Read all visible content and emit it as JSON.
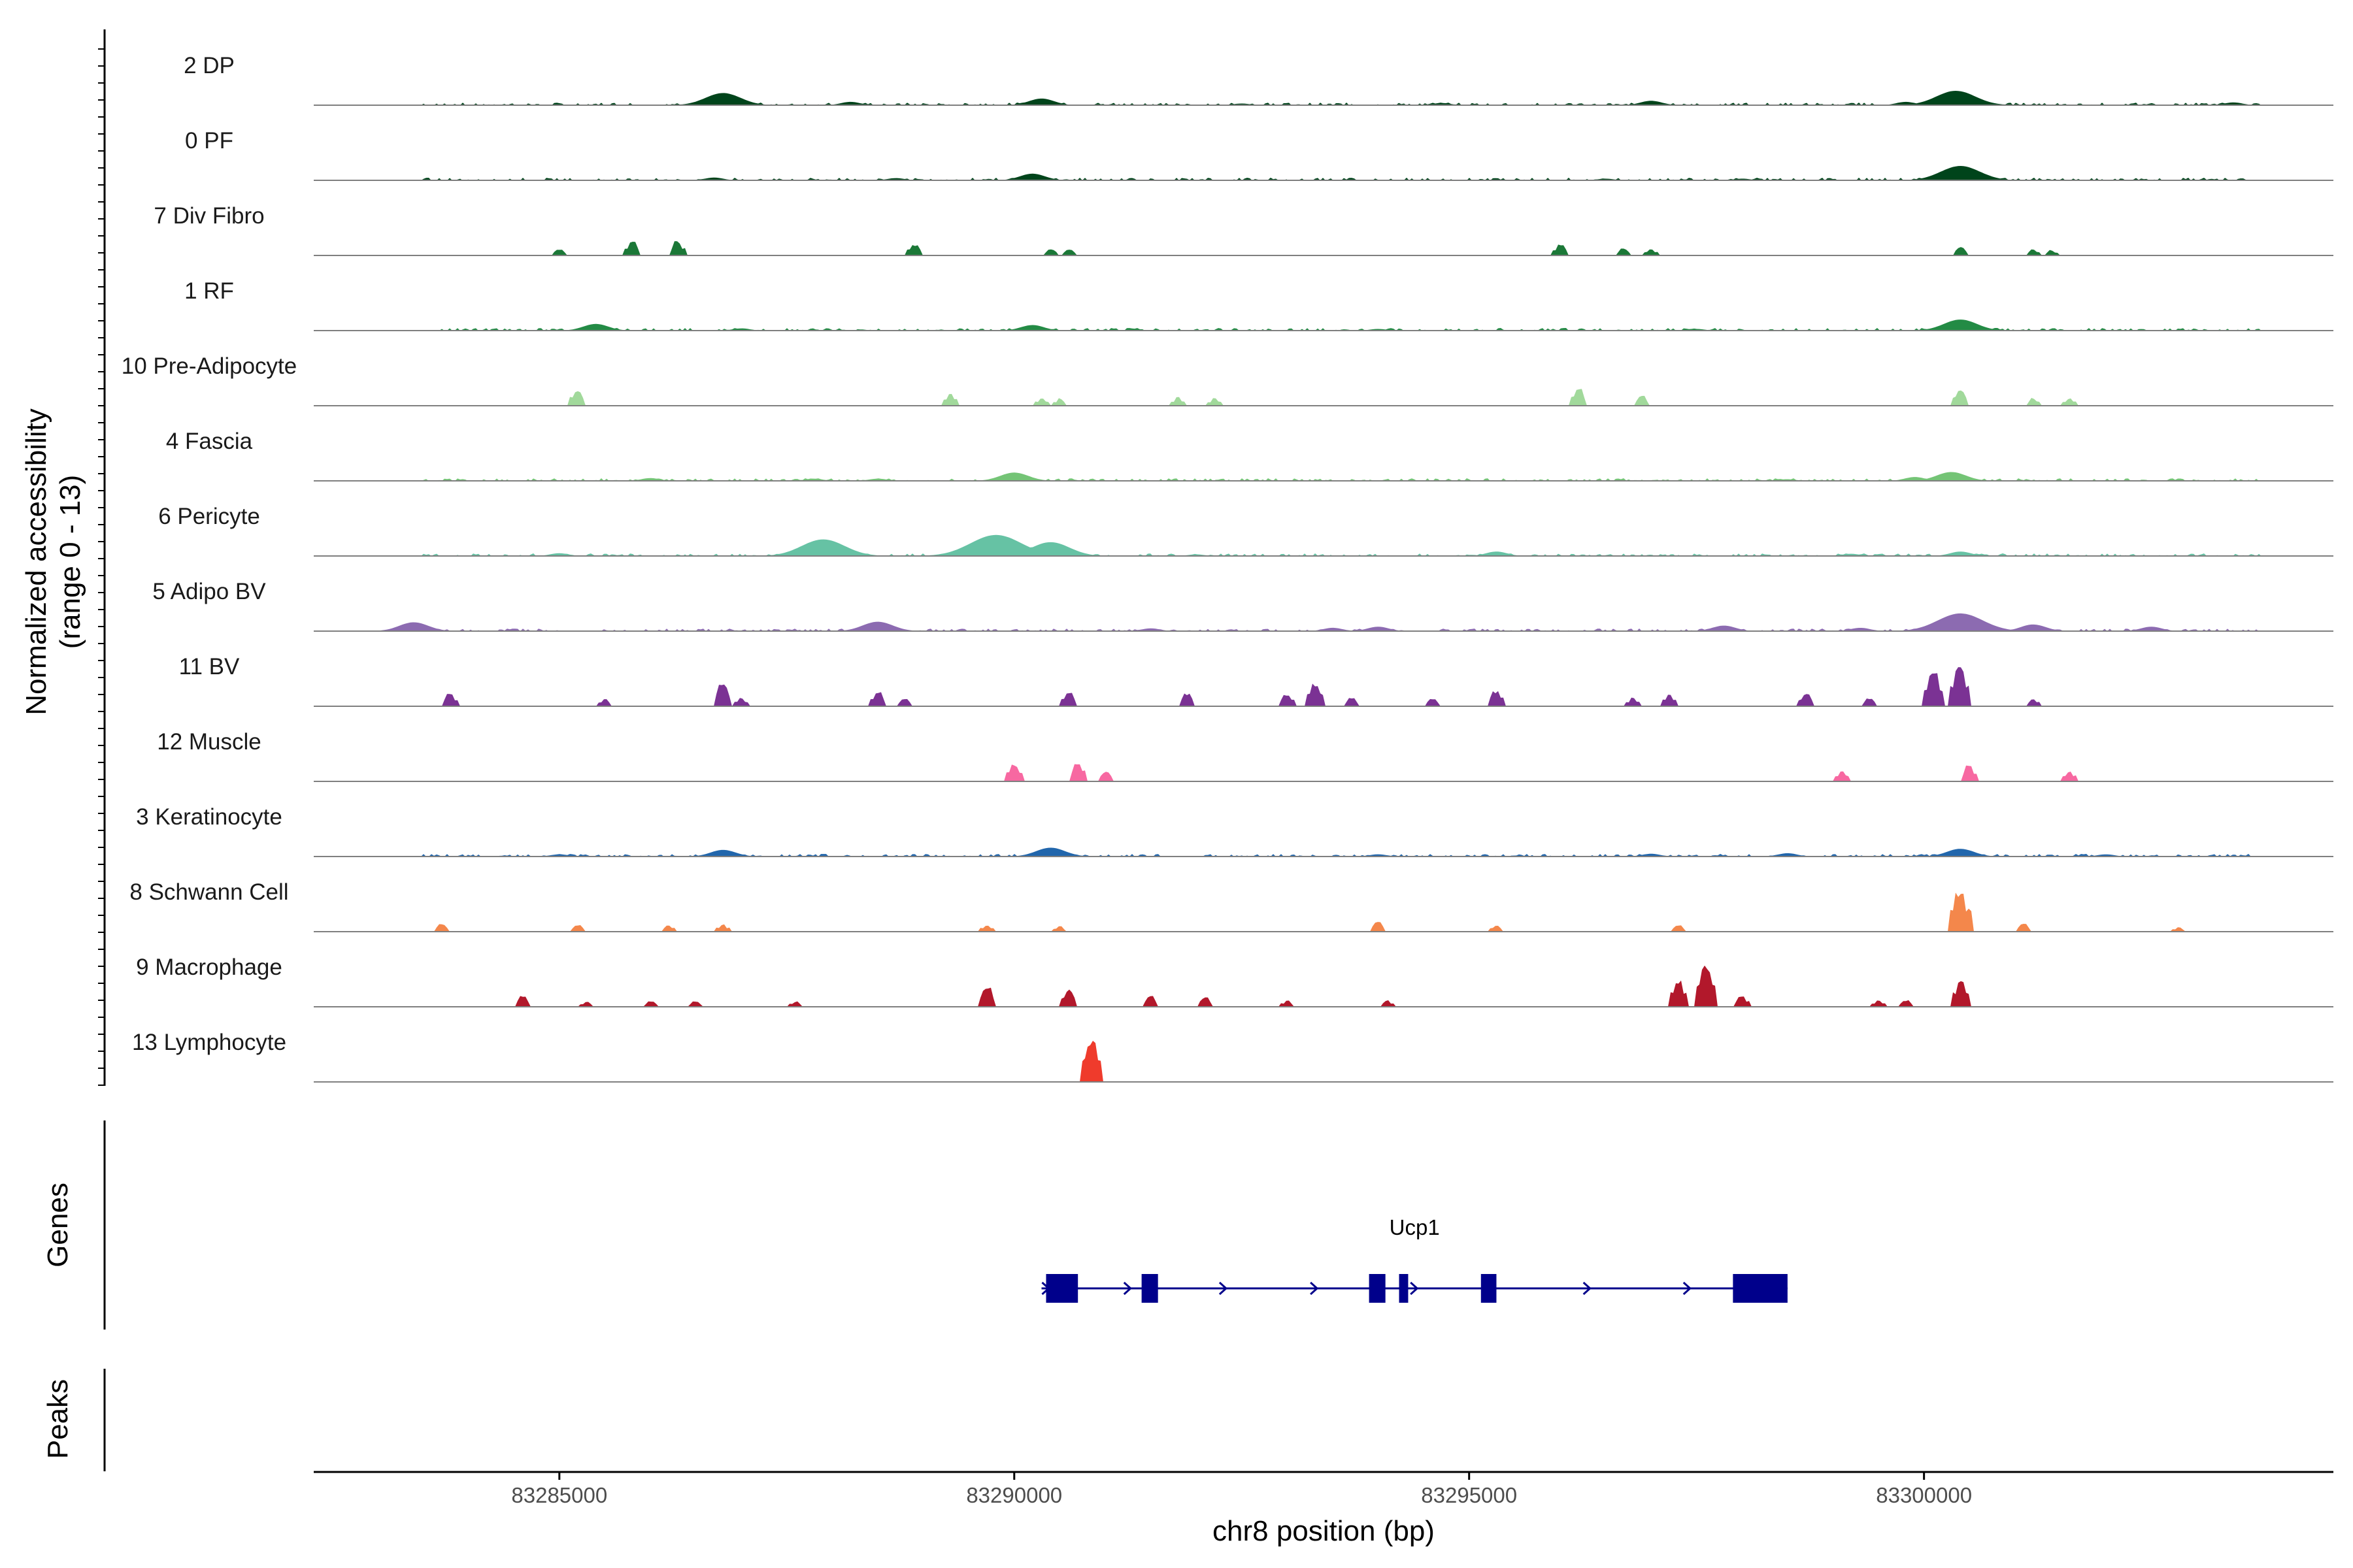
{
  "chart_data": {
    "type": "area",
    "chromosome": "chr8",
    "x_range": [
      83282300,
      83304500
    ],
    "y_label_line1": "Normalized accessibility",
    "y_label_line2": "(range 0 - 13)",
    "y_range": [
      0,
      13
    ],
    "x_label": "chr8 position (bp)",
    "x_ticks": [
      83285000,
      83290000,
      83295000,
      83300000
    ],
    "x_tick_labels": [
      "83285000",
      "83290000",
      "83295000",
      "83300000"
    ],
    "panel_labels": {
      "genes": "Genes",
      "peaks": "Peaks"
    },
    "tracks": [
      {
        "name": "2 DP",
        "color": "#00441b",
        "style": "smooth",
        "peaks": [
          [
            83286800,
            2.2
          ],
          [
            83290300,
            1.2
          ],
          [
            83288200,
            0.6
          ],
          [
            83297000,
            0.8
          ],
          [
            83300350,
            2.6
          ],
          [
            83292500,
            0.3
          ],
          [
            83294700,
            0.4
          ],
          [
            83299800,
            0.6
          ],
          [
            83303400,
            0.5
          ]
        ]
      },
      {
        "name": "0 PF",
        "color": "#00441b",
        "style": "smooth",
        "peaks": [
          [
            83290200,
            1.2
          ],
          [
            83300400,
            2.6
          ],
          [
            83286700,
            0.5
          ],
          [
            83288700,
            0.4
          ],
          [
            83296500,
            0.3
          ],
          [
            83298000,
            0.3
          ]
        ]
      },
      {
        "name": "7 Div Fibro",
        "color": "#1b7837",
        "style": "blocks",
        "peaks": [
          [
            83285000,
            1.2
          ],
          [
            83285800,
            2.5
          ],
          [
            83286300,
            2.6
          ],
          [
            83288900,
            2.1
          ],
          [
            83290400,
            1.2
          ],
          [
            83290600,
            1.1
          ],
          [
            83296000,
            2.0
          ],
          [
            83296700,
            1.3
          ],
          [
            83297000,
            1.2
          ],
          [
            83300400,
            1.6
          ],
          [
            83301200,
            1.2
          ],
          [
            83301400,
            1.0
          ]
        ]
      },
      {
        "name": "1 RF",
        "color": "#238b45",
        "style": "smooth",
        "peaks": [
          [
            83285400,
            1.2
          ],
          [
            83290200,
            1.0
          ],
          [
            83300400,
            2.0
          ],
          [
            83287000,
            0.4
          ],
          [
            83294000,
            0.3
          ],
          [
            83297500,
            0.3
          ]
        ]
      },
      {
        "name": "10 Pre-Adipocyte",
        "color": "#a1d99b",
        "style": "blocks",
        "peaks": [
          [
            83285200,
            3.0
          ],
          [
            83289300,
            2.2
          ],
          [
            83290300,
            1.5
          ],
          [
            83290500,
            1.4
          ],
          [
            83291800,
            1.6
          ],
          [
            83292200,
            1.4
          ],
          [
            83296200,
            3.2
          ],
          [
            83296900,
            1.8
          ],
          [
            83300400,
            3.0
          ],
          [
            83301200,
            1.5
          ],
          [
            83301600,
            1.4
          ]
        ]
      },
      {
        "name": "4 Fascia",
        "color": "#74c476",
        "style": "smooth",
        "peaks": [
          [
            83290000,
            1.5
          ],
          [
            83300300,
            1.6
          ],
          [
            83286000,
            0.5
          ],
          [
            83287800,
            0.4
          ],
          [
            83288500,
            0.4
          ],
          [
            83298500,
            0.3
          ],
          [
            83299900,
            0.7
          ]
        ]
      },
      {
        "name": "6 Pericyte",
        "color": "#66c2a4",
        "style": "smooth",
        "peaks": [
          [
            83287900,
            3.0
          ],
          [
            83289800,
            3.8
          ],
          [
            83290400,
            2.5
          ],
          [
            83285000,
            0.5
          ],
          [
            83295300,
            0.8
          ],
          [
            83300400,
            0.8
          ],
          [
            83299200,
            0.4
          ],
          [
            83292000,
            0.3
          ]
        ]
      },
      {
        "name": "5 Adipo BV",
        "color": "#8c6bb1",
        "style": "smooth",
        "peaks": [
          [
            83283400,
            1.6
          ],
          [
            83288500,
            1.7
          ],
          [
            83297800,
            1.0
          ],
          [
            83299300,
            0.6
          ],
          [
            83300400,
            3.2
          ],
          [
            83301200,
            1.2
          ],
          [
            83302500,
            0.8
          ],
          [
            83294000,
            0.8
          ],
          [
            83291500,
            0.5
          ],
          [
            83293500,
            0.6
          ]
        ]
      },
      {
        "name": "11 BV",
        "color": "#7b3294",
        "style": "blocks",
        "peaks": [
          [
            83283800,
            2.3
          ],
          [
            83285500,
            1.5
          ],
          [
            83286800,
            4.0
          ],
          [
            83287000,
            1.6
          ],
          [
            83288500,
            2.6
          ],
          [
            83288800,
            1.5
          ],
          [
            83290600,
            2.6
          ],
          [
            83291900,
            2.5
          ],
          [
            83293000,
            2.3
          ],
          [
            83293300,
            4.3
          ],
          [
            83293700,
            1.6
          ],
          [
            83294600,
            1.5
          ],
          [
            83295300,
            2.9
          ],
          [
            83296800,
            1.6
          ],
          [
            83297200,
            2.5
          ],
          [
            83298700,
            2.4
          ],
          [
            83299400,
            1.5
          ],
          [
            83300100,
            6.0
          ],
          [
            83300400,
            7.2
          ],
          [
            83301200,
            1.5
          ]
        ]
      },
      {
        "name": "12 Muscle",
        "color": "#f768a1",
        "style": "blocks",
        "peaks": [
          [
            83290000,
            3.2
          ],
          [
            83290700,
            3.6
          ],
          [
            83291000,
            1.8
          ],
          [
            83299100,
            2.0
          ],
          [
            83300500,
            3.0
          ],
          [
            83301600,
            2.0
          ]
        ]
      },
      {
        "name": "3 Keratinocyte",
        "color": "#2166ac",
        "style": "smooth",
        "peaks": [
          [
            83286800,
            1.2
          ],
          [
            83290400,
            1.6
          ],
          [
            83300400,
            1.4
          ],
          [
            83285000,
            0.4
          ],
          [
            83294000,
            0.4
          ],
          [
            83297000,
            0.5
          ],
          [
            83298500,
            0.6
          ],
          [
            83302000,
            0.4
          ]
        ]
      },
      {
        "name": "8 Schwann Cell",
        "color": "#f4874b",
        "style": "blocks",
        "peaks": [
          [
            83283700,
            1.4
          ],
          [
            83285200,
            1.2
          ],
          [
            83286200,
            1.3
          ],
          [
            83286800,
            1.4
          ],
          [
            83289700,
            1.3
          ],
          [
            83290500,
            1.0
          ],
          [
            83294000,
            2.0
          ],
          [
            83295300,
            1.3
          ],
          [
            83297300,
            1.2
          ],
          [
            83300400,
            7.8
          ],
          [
            83301100,
            1.5
          ],
          [
            83302800,
            0.8
          ]
        ]
      },
      {
        "name": "9 Macrophage",
        "color": "#b2182b",
        "style": "blocks",
        "peaks": [
          [
            83284600,
            2.0
          ],
          [
            83285300,
            1.0
          ],
          [
            83286000,
            1.0
          ],
          [
            83286500,
            1.0
          ],
          [
            83287600,
            1.0
          ],
          [
            83289700,
            3.5
          ],
          [
            83290600,
            3.2
          ],
          [
            83291500,
            2.0
          ],
          [
            83292100,
            1.8
          ],
          [
            83293000,
            1.2
          ],
          [
            83294100,
            1.2
          ],
          [
            83297300,
            5.0
          ],
          [
            83297600,
            7.5
          ],
          [
            83298000,
            2.0
          ],
          [
            83299500,
            1.2
          ],
          [
            83299800,
            1.2
          ],
          [
            83300400,
            5.0
          ]
        ]
      },
      {
        "name": "13 Lymphocyte",
        "color": "#ef3b2c",
        "style": "blocks",
        "peaks": [
          [
            83290850,
            7.8
          ]
        ]
      }
    ],
    "gene": {
      "name": "Ucp1",
      "color": "#00008b",
      "start": 83290300,
      "end": 83298500,
      "exons": [
        [
          83290350,
          83290700
        ],
        [
          83291400,
          83291580
        ],
        [
          83293900,
          83294080
        ],
        [
          83294230,
          83294330
        ],
        [
          83295130,
          83295300
        ],
        [
          83297900,
          83298500
        ]
      ],
      "arrows": [
        83290350,
        83291250,
        83292300,
        83293300,
        83294400,
        83296300,
        83297400
      ]
    }
  }
}
